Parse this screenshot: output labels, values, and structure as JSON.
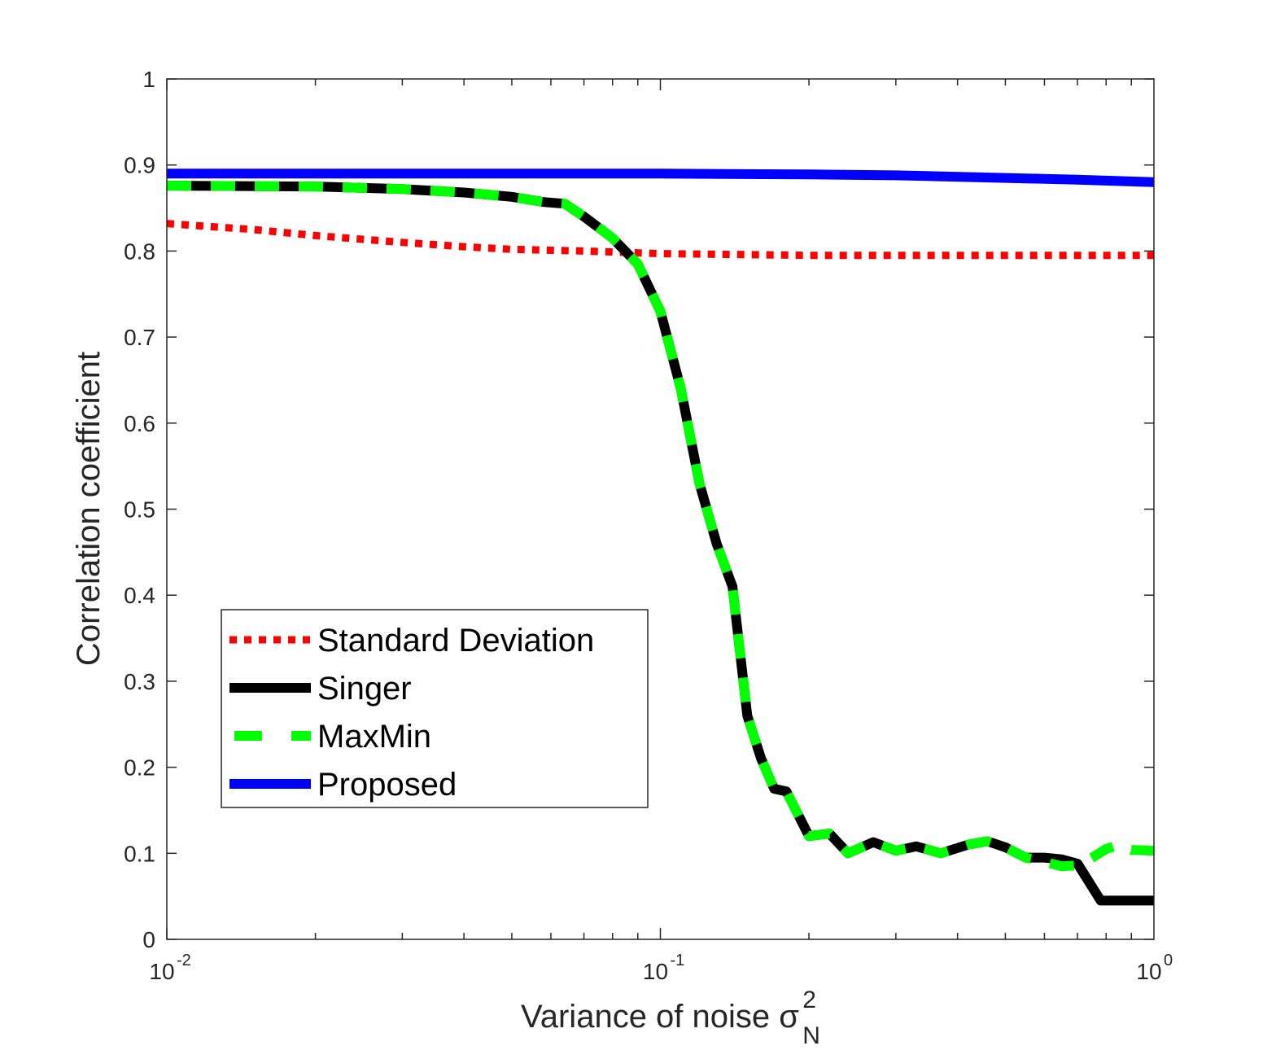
{
  "chart_data": {
    "type": "line",
    "xscale": "log",
    "xlim": [
      0.01,
      1
    ],
    "ylim": [
      0,
      1
    ],
    "xlabel": "Variance of noise σ",
    "xlabel_sup": "2",
    "xlabel_sub": "N",
    "ylabel": "Correlation coefficient",
    "x_ticks": [
      {
        "value": 0.01,
        "base": "10",
        "exp": "-2"
      },
      {
        "value": 0.1,
        "base": "10",
        "exp": "-1"
      },
      {
        "value": 1,
        "base": "10",
        "exp": "0"
      }
    ],
    "y_ticks": [
      {
        "value": 0,
        "label": "0"
      },
      {
        "value": 0.1,
        "label": "0.1"
      },
      {
        "value": 0.2,
        "label": "0.2"
      },
      {
        "value": 0.3,
        "label": "0.3"
      },
      {
        "value": 0.4,
        "label": "0.4"
      },
      {
        "value": 0.5,
        "label": "0.5"
      },
      {
        "value": 0.6,
        "label": "0.6"
      },
      {
        "value": 0.7,
        "label": "0.7"
      },
      {
        "value": 0.8,
        "label": "0.8"
      },
      {
        "value": 0.9,
        "label": "0.9"
      },
      {
        "value": 1,
        "label": "1"
      }
    ],
    "series": [
      {
        "name": "Standard Deviation",
        "color": "#ff0000",
        "style": "dotted",
        "points": [
          [
            0.01,
            0.832
          ],
          [
            0.015,
            0.825
          ],
          [
            0.02,
            0.818
          ],
          [
            0.03,
            0.81
          ],
          [
            0.04,
            0.805
          ],
          [
            0.05,
            0.802
          ],
          [
            0.07,
            0.8
          ],
          [
            0.1,
            0.797
          ],
          [
            0.2,
            0.795
          ],
          [
            0.5,
            0.795
          ],
          [
            1,
            0.795
          ]
        ]
      },
      {
        "name": "Singer",
        "color": "#000000",
        "style": "solid",
        "points": [
          [
            0.01,
            0.876
          ],
          [
            0.02,
            0.875
          ],
          [
            0.03,
            0.872
          ],
          [
            0.04,
            0.868
          ],
          [
            0.05,
            0.863
          ],
          [
            0.058,
            0.857
          ],
          [
            0.064,
            0.855
          ],
          [
            0.07,
            0.84
          ],
          [
            0.08,
            0.815
          ],
          [
            0.09,
            0.785
          ],
          [
            0.1,
            0.73
          ],
          [
            0.11,
            0.64
          ],
          [
            0.12,
            0.53
          ],
          [
            0.13,
            0.46
          ],
          [
            0.14,
            0.41
          ],
          [
            0.15,
            0.26
          ],
          [
            0.16,
            0.21
          ],
          [
            0.17,
            0.175
          ],
          [
            0.18,
            0.172
          ],
          [
            0.2,
            0.12
          ],
          [
            0.22,
            0.123
          ],
          [
            0.24,
            0.1
          ],
          [
            0.27,
            0.113
          ],
          [
            0.3,
            0.103
          ],
          [
            0.33,
            0.108
          ],
          [
            0.37,
            0.1
          ],
          [
            0.42,
            0.11
          ],
          [
            0.46,
            0.114
          ],
          [
            0.5,
            0.107
          ],
          [
            0.55,
            0.095
          ],
          [
            0.6,
            0.095
          ],
          [
            0.65,
            0.093
          ],
          [
            0.7,
            0.088
          ],
          [
            0.78,
            0.045
          ],
          [
            0.85,
            0.045
          ],
          [
            1,
            0.045
          ]
        ]
      },
      {
        "name": "MaxMin",
        "color": "#00ff00",
        "style": "dashed",
        "points": [
          [
            0.01,
            0.876
          ],
          [
            0.02,
            0.875
          ],
          [
            0.03,
            0.872
          ],
          [
            0.04,
            0.868
          ],
          [
            0.05,
            0.863
          ],
          [
            0.058,
            0.857
          ],
          [
            0.064,
            0.855
          ],
          [
            0.07,
            0.84
          ],
          [
            0.08,
            0.815
          ],
          [
            0.09,
            0.785
          ],
          [
            0.1,
            0.73
          ],
          [
            0.11,
            0.64
          ],
          [
            0.12,
            0.53
          ],
          [
            0.13,
            0.46
          ],
          [
            0.14,
            0.41
          ],
          [
            0.15,
            0.26
          ],
          [
            0.16,
            0.21
          ],
          [
            0.17,
            0.175
          ],
          [
            0.18,
            0.172
          ],
          [
            0.2,
            0.12
          ],
          [
            0.22,
            0.123
          ],
          [
            0.24,
            0.1
          ],
          [
            0.27,
            0.113
          ],
          [
            0.3,
            0.103
          ],
          [
            0.33,
            0.108
          ],
          [
            0.37,
            0.1
          ],
          [
            0.42,
            0.11
          ],
          [
            0.46,
            0.114
          ],
          [
            0.5,
            0.107
          ],
          [
            0.55,
            0.095
          ],
          [
            0.6,
            0.09
          ],
          [
            0.65,
            0.085
          ],
          [
            0.7,
            0.086
          ],
          [
            0.75,
            0.095
          ],
          [
            0.8,
            0.105
          ],
          [
            0.85,
            0.11
          ],
          [
            0.9,
            0.104
          ],
          [
            1,
            0.103
          ]
        ]
      },
      {
        "name": "Proposed",
        "color": "#0000ff",
        "style": "solid",
        "points": [
          [
            0.01,
            0.89
          ],
          [
            0.05,
            0.89
          ],
          [
            0.1,
            0.89
          ],
          [
            0.2,
            0.889
          ],
          [
            0.3,
            0.888
          ],
          [
            0.5,
            0.885
          ],
          [
            0.7,
            0.883
          ],
          [
            1,
            0.88
          ]
        ]
      }
    ],
    "legend": {
      "position": "center-left",
      "entries": [
        "Standard Deviation",
        "Singer",
        "MaxMin",
        "Proposed"
      ]
    }
  }
}
